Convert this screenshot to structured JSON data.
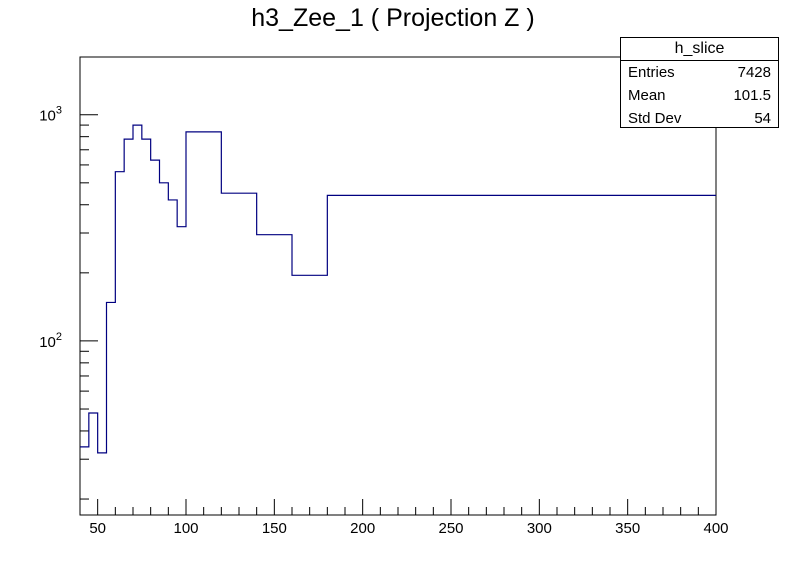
{
  "title": "h3_Zee_1 ( Projection Z )",
  "stats": {
    "name": "h_slice",
    "rows": [
      {
        "label": "Entries",
        "value": "7428"
      },
      {
        "label": "Mean",
        "value": "101.5"
      },
      {
        "label": "Std Dev",
        "value": "54"
      }
    ]
  },
  "chart_data": {
    "type": "histogram",
    "title": "h3_Zee_1 ( Projection Z )",
    "xlabel": "",
    "ylabel": "",
    "xlim": [
      40,
      400
    ],
    "ylim": [
      17,
      1800
    ],
    "ylog": true,
    "line_color": "#000080",
    "x_ticks": [
      50,
      100,
      150,
      200,
      250,
      300,
      350,
      400
    ],
    "x_tick_labels": [
      "50",
      "100",
      "150",
      "200",
      "250",
      "300",
      "350",
      "400"
    ],
    "y_major_ticks": [
      100,
      1000
    ],
    "y_tick_bases": [
      "10",
      "10"
    ],
    "y_tick_exponents": [
      "2",
      "3"
    ],
    "bin_edges": [
      40,
      45,
      50,
      55,
      60,
      65,
      70,
      75,
      80,
      85,
      90,
      95,
      100,
      120,
      140,
      160,
      180,
      400
    ],
    "values": [
      34,
      48,
      32,
      148,
      560,
      780,
      900,
      780,
      630,
      500,
      420,
      320,
      840,
      450,
      295,
      195,
      440
    ]
  }
}
